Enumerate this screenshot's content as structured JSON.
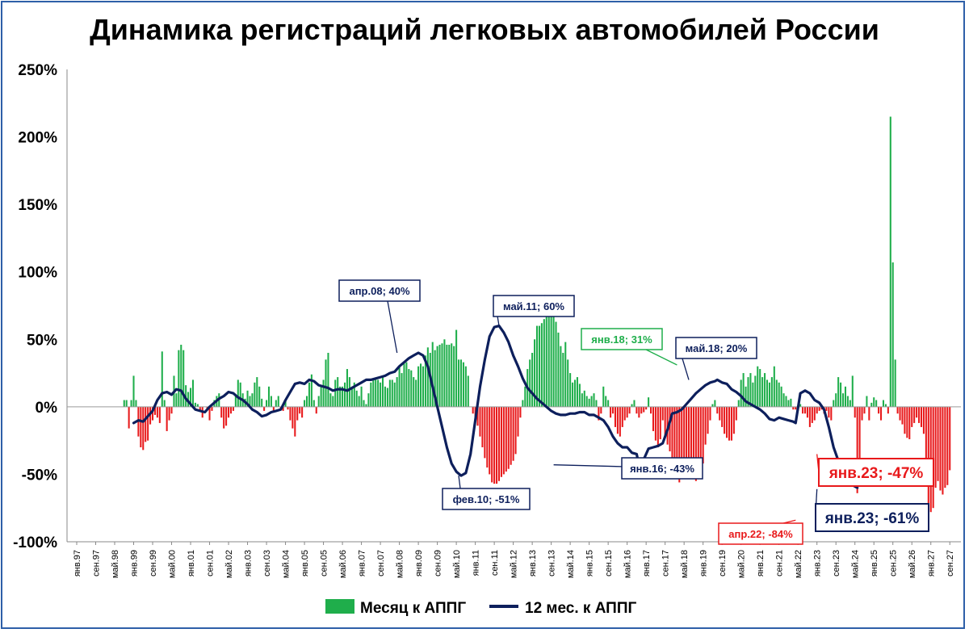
{
  "chart_data": {
    "type": "bar+line",
    "title": "Динамика регистраций легковых автомобилей России",
    "ylim": [
      -100,
      250
    ],
    "y_ticks": [
      "250%",
      "200%",
      "150%",
      "100%",
      "50%",
      "0%",
      "-50%",
      "-100%"
    ],
    "y_tick_values": [
      250,
      200,
      150,
      100,
      50,
      0,
      -50,
      -100
    ],
    "x_ticks": [
      "янв.97",
      "сен.97",
      "май.98",
      "янв.99",
      "сен.99",
      "май.00",
      "янв.01",
      "сен.01",
      "май.02",
      "янв.03",
      "сен.03",
      "май.04",
      "янв.05",
      "сен.05",
      "май.06",
      "янв.07",
      "сен.07",
      "май.08",
      "янв.09",
      "сен.09",
      "май.10",
      "янв.11",
      "сен.11",
      "май.12",
      "янв.13",
      "сен.13",
      "май.14",
      "янв.15",
      "сен.15",
      "май.16",
      "янв.17",
      "сен.17",
      "май.18",
      "янв.19",
      "сен.19",
      "май.20",
      "янв.21",
      "сен.21",
      "май.22",
      "янв.23",
      "сен.23",
      "май.24",
      "янв.25",
      "сен.25",
      "май.26",
      "янв.27",
      "сен.27"
    ],
    "grid": false,
    "legend_position": "bottom",
    "colors": {
      "positive_bar": "#1fae4b",
      "negative_bar": "#e8191b",
      "line": "#0d1f5c",
      "green_label": "#1fae4b",
      "red_label": "#e8191b"
    },
    "series": [
      {
        "name": "Месяц к АППГ",
        "type": "bar",
        "values_by_month_from_jan97": [
          null,
          null,
          null,
          null,
          null,
          null,
          null,
          null,
          null,
          null,
          null,
          null,
          null,
          null,
          null,
          null,
          null,
          null,
          null,
          null,
          5,
          5,
          -16,
          5,
          23,
          5,
          -22,
          -30,
          -32,
          -26,
          -25,
          -13,
          -10,
          -6,
          -8,
          -12,
          41,
          5,
          -18,
          -10,
          -5,
          23,
          10,
          42,
          46,
          42,
          16,
          11,
          14,
          20,
          3,
          2,
          -3,
          -8,
          0,
          -2,
          -10,
          -3,
          5,
          8,
          10,
          -8,
          -16,
          -14,
          -8,
          -5,
          -3,
          8,
          20,
          18,
          10,
          6,
          12,
          8,
          10,
          18,
          22,
          15,
          6,
          -3,
          5,
          15,
          8,
          -3,
          5,
          8,
          -2,
          -3,
          5,
          -2,
          -10,
          -16,
          -22,
          -10,
          -5,
          -8,
          5,
          8,
          18,
          24,
          5,
          -5,
          8,
          15,
          20,
          35,
          40,
          10,
          8,
          20,
          22,
          15,
          15,
          18,
          28,
          22,
          15,
          18,
          12,
          8,
          15,
          5,
          2,
          10,
          18,
          20,
          20,
          20,
          18,
          22,
          15,
          14,
          20,
          20,
          18,
          22,
          30,
          25,
          32,
          33,
          28,
          27,
          22,
          20,
          30,
          32,
          30,
          38,
          44,
          40,
          48,
          42,
          45,
          46,
          47,
          50,
          46,
          46,
          47,
          45,
          57,
          35,
          35,
          33,
          30,
          23,
          0,
          -5,
          -10,
          -14,
          -22,
          -30,
          -38,
          -45,
          -50,
          -56,
          -57,
          -57,
          -55,
          -52,
          -50,
          -48,
          -46,
          -43,
          -40,
          -35,
          -22,
          -8,
          5,
          15,
          28,
          35,
          40,
          50,
          60,
          60,
          62,
          65,
          82,
          72,
          82,
          70,
          63,
          55,
          45,
          40,
          48,
          35,
          25,
          18,
          20,
          22,
          17,
          10,
          12,
          8,
          6,
          8,
          10,
          5,
          -10,
          -5,
          15,
          8,
          5,
          -8,
          -5,
          -15,
          -20,
          -22,
          -15,
          -10,
          -8,
          -5,
          2,
          5,
          -5,
          -8,
          -5,
          -4,
          -2,
          7,
          -5,
          -18,
          -25,
          -30,
          -24,
          -10,
          -23,
          -28,
          -33,
          -38,
          -42,
          -50,
          -56,
          -50,
          -48,
          -45,
          -42,
          -40,
          -50,
          -55,
          -45,
          -47,
          -42,
          -28,
          -20,
          -10,
          2,
          5,
          -5,
          -10,
          -15,
          -20,
          -23,
          -25,
          -25,
          -20,
          -10,
          5,
          20,
          25,
          15,
          22,
          25,
          18,
          23,
          30,
          28,
          22,
          25,
          20,
          18,
          22,
          30,
          20,
          18,
          15,
          10,
          8,
          5,
          6,
          -2,
          -2,
          -3,
          2,
          -5,
          -5,
          -8,
          -15,
          -12,
          -10,
          -5,
          -3,
          -2,
          -5,
          -3,
          -8,
          -10,
          5,
          10,
          22,
          18,
          10,
          15,
          8,
          5,
          23,
          -8,
          -64,
          -47,
          -10,
          -5,
          8,
          -10,
          3,
          7,
          5,
          -5,
          -10,
          5,
          2,
          -5,
          215,
          107,
          35,
          -5,
          -10,
          -13,
          -20,
          -23,
          -24,
          -15,
          -12,
          -8,
          -12,
          -15,
          -20,
          -44,
          -84,
          -78,
          -75,
          -60,
          -55,
          -62,
          -65,
          -60,
          -58,
          -47
        ]
      },
      {
        "name": "12 мес. к АППГ",
        "type": "line",
        "points": [
          [
            24,
            -12
          ],
          [
            26,
            -10
          ],
          [
            28,
            -11
          ],
          [
            30,
            -7
          ],
          [
            32,
            -3
          ],
          [
            34,
            5
          ],
          [
            36,
            10
          ],
          [
            38,
            11
          ],
          [
            40,
            9
          ],
          [
            42,
            13
          ],
          [
            44,
            12
          ],
          [
            46,
            6
          ],
          [
            48,
            2
          ],
          [
            50,
            -2
          ],
          [
            52,
            -3
          ],
          [
            54,
            -4
          ],
          [
            56,
            0
          ],
          [
            58,
            3
          ],
          [
            60,
            6
          ],
          [
            62,
            8
          ],
          [
            64,
            11
          ],
          [
            66,
            10
          ],
          [
            68,
            7
          ],
          [
            70,
            5
          ],
          [
            72,
            2
          ],
          [
            74,
            -2
          ],
          [
            76,
            -4
          ],
          [
            78,
            -7
          ],
          [
            80,
            -6
          ],
          [
            82,
            -4
          ],
          [
            84,
            -3
          ],
          [
            86,
            -2
          ],
          [
            88,
            5
          ],
          [
            90,
            11
          ],
          [
            92,
            17
          ],
          [
            94,
            18
          ],
          [
            96,
            17
          ],
          [
            98,
            20
          ],
          [
            100,
            19
          ],
          [
            102,
            16
          ],
          [
            104,
            15
          ],
          [
            106,
            14
          ],
          [
            108,
            12
          ],
          [
            110,
            13
          ],
          [
            112,
            13
          ],
          [
            114,
            12
          ],
          [
            116,
            14
          ],
          [
            118,
            16
          ],
          [
            120,
            18
          ],
          [
            122,
            20
          ],
          [
            124,
            20
          ],
          [
            126,
            21
          ],
          [
            128,
            22
          ],
          [
            130,
            23
          ],
          [
            132,
            25
          ],
          [
            134,
            26
          ],
          [
            136,
            30
          ],
          [
            138,
            33
          ],
          [
            140,
            36
          ],
          [
            142,
            38
          ],
          [
            144,
            40
          ],
          [
            146,
            38
          ],
          [
            148,
            30
          ],
          [
            150,
            15
          ],
          [
            152,
            0
          ],
          [
            154,
            -15
          ],
          [
            156,
            -30
          ],
          [
            158,
            -42
          ],
          [
            160,
            -48
          ],
          [
            162,
            -51
          ],
          [
            164,
            -49
          ],
          [
            166,
            -35
          ],
          [
            168,
            -10
          ],
          [
            170,
            15
          ],
          [
            172,
            35
          ],
          [
            174,
            52
          ],
          [
            176,
            59
          ],
          [
            178,
            60
          ],
          [
            180,
            55
          ],
          [
            182,
            48
          ],
          [
            184,
            38
          ],
          [
            186,
            30
          ],
          [
            188,
            21
          ],
          [
            190,
            14
          ],
          [
            192,
            10
          ],
          [
            194,
            6
          ],
          [
            196,
            3
          ],
          [
            198,
            0
          ],
          [
            200,
            -3
          ],
          [
            202,
            -5
          ],
          [
            204,
            -6
          ],
          [
            206,
            -6
          ],
          [
            208,
            -5
          ],
          [
            210,
            -5
          ],
          [
            212,
            -4
          ],
          [
            214,
            -4
          ],
          [
            216,
            -6
          ],
          [
            218,
            -6
          ],
          [
            220,
            -8
          ],
          [
            222,
            -10
          ],
          [
            224,
            -15
          ],
          [
            226,
            -22
          ],
          [
            228,
            -27
          ],
          [
            230,
            -30
          ],
          [
            232,
            -30
          ],
          [
            234,
            -34
          ],
          [
            236,
            -35
          ],
          [
            237,
            -43
          ],
          [
            239,
            -39
          ],
          [
            241,
            -31
          ],
          [
            243,
            -30
          ],
          [
            245,
            -29
          ],
          [
            247,
            -27
          ],
          [
            249,
            -17
          ],
          [
            251,
            -5
          ],
          [
            253,
            -4
          ],
          [
            255,
            -2
          ],
          [
            257,
            2
          ],
          [
            259,
            6
          ],
          [
            261,
            10
          ],
          [
            263,
            13
          ],
          [
            265,
            16
          ],
          [
            267,
            18
          ],
          [
            269,
            19
          ],
          [
            270,
            20
          ],
          [
            272,
            18
          ],
          [
            274,
            17
          ],
          [
            276,
            13
          ],
          [
            278,
            11
          ],
          [
            280,
            8
          ],
          [
            282,
            4
          ],
          [
            284,
            2
          ],
          [
            286,
            0
          ],
          [
            288,
            -2
          ],
          [
            290,
            -5
          ],
          [
            292,
            -9
          ],
          [
            294,
            -10
          ],
          [
            296,
            -8
          ],
          [
            298,
            -9
          ],
          [
            300,
            -10
          ],
          [
            302,
            -11
          ],
          [
            303,
            -12
          ],
          [
            305,
            10
          ],
          [
            307,
            12
          ],
          [
            309,
            10
          ],
          [
            311,
            5
          ],
          [
            313,
            3
          ],
          [
            315,
            -2
          ],
          [
            317,
            -15
          ],
          [
            319,
            -30
          ],
          [
            321,
            -40
          ],
          [
            323,
            -48
          ],
          [
            325,
            -55
          ],
          [
            327,
            -58
          ],
          [
            329,
            -60
          ],
          [
            312,
            0
          ],
          [
            314,
            -2
          ]
        ]
      }
    ],
    "annotations": [
      {
        "text": "апр.08; 40%",
        "color": "#0d1f5c"
      },
      {
        "text": "май.11; 60%",
        "color": "#0d1f5c"
      },
      {
        "text": "янв.18; 31%",
        "color": "#1fae4b"
      },
      {
        "text": "май.18; 20%",
        "color": "#0d1f5c"
      },
      {
        "text": "фев.10; -51%",
        "color": "#0d1f5c"
      },
      {
        "text": "янв.16; -43%",
        "color": "#0d1f5c"
      },
      {
        "text": "апр.22; -84%",
        "color": "#e8191b"
      },
      {
        "text": "янв.23; -47%",
        "color": "#e8191b"
      },
      {
        "text": "янв.23; -61%",
        "color": "#0d1f5c"
      }
    ]
  }
}
